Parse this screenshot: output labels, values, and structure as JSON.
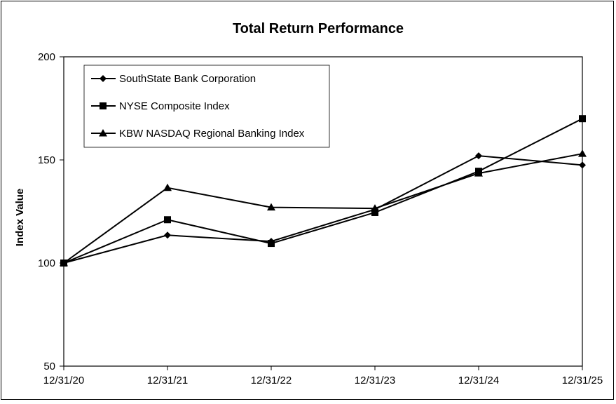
{
  "chart_data": {
    "type": "line",
    "title": "Total Return Performance",
    "xlabel": "",
    "ylabel": "Index Value",
    "categories": [
      "12/31/20",
      "12/31/21",
      "12/31/22",
      "12/31/23",
      "12/31/24",
      "12/31/25"
    ],
    "ylim": [
      50,
      200
    ],
    "yticks": [
      "50",
      "100",
      "150",
      "200"
    ],
    "grid": true,
    "legend_position": "top-left",
    "series": [
      {
        "name": "SouthState Bank Corporation",
        "marker": "diamond",
        "values": [
          100,
          113.5,
          110.5,
          126,
          152,
          147.5
        ]
      },
      {
        "name": "NYSE Composite Index",
        "marker": "square",
        "values": [
          100,
          121,
          109.5,
          124.5,
          144.5,
          170
        ]
      },
      {
        "name": "KBW NASDAQ Regional Banking Index",
        "marker": "triangle",
        "values": [
          100,
          136.5,
          127,
          126.5,
          143.5,
          153
        ]
      }
    ]
  }
}
